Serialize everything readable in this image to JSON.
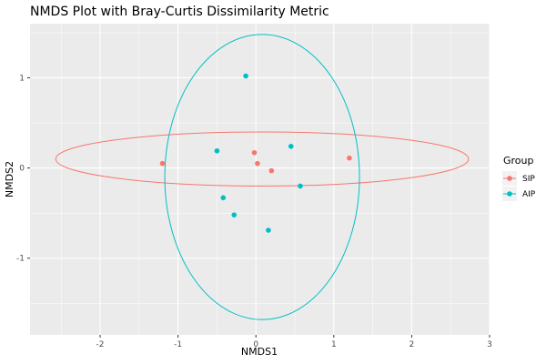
{
  "chart_data": {
    "type": "scatter",
    "title": "NMDS Plot with Bray-Curtis Dissimilarity Metric",
    "xlabel": "NMDS1",
    "ylabel": "NMDS2",
    "xlim": [
      -2.9,
      3.0
    ],
    "ylim": [
      -1.85,
      1.6
    ],
    "x_ticks": [
      -2,
      -1,
      0,
      1,
      2,
      3
    ],
    "y_ticks": [
      -1,
      0,
      1
    ],
    "grid": true,
    "legend": {
      "title": "Group",
      "position": "right"
    },
    "series": [
      {
        "name": "SIP",
        "color": "#F8766D",
        "points": [
          {
            "x": -1.2,
            "y": 0.05
          },
          {
            "x": -0.02,
            "y": 0.17
          },
          {
            "x": 0.02,
            "y": 0.05
          },
          {
            "x": 0.2,
            "y": -0.03
          },
          {
            "x": 1.2,
            "y": 0.11
          }
        ],
        "ellipse": {
          "cx": 0.08,
          "cy": 0.1,
          "rx": 2.65,
          "ry": 0.3
        }
      },
      {
        "name": "AIP",
        "color": "#00BFC4",
        "points": [
          {
            "x": -0.13,
            "y": 1.02
          },
          {
            "x": -0.5,
            "y": 0.19
          },
          {
            "x": 0.45,
            "y": 0.24
          },
          {
            "x": 0.57,
            "y": -0.2
          },
          {
            "x": -0.42,
            "y": -0.33
          },
          {
            "x": -0.28,
            "y": -0.52
          },
          {
            "x": 0.16,
            "y": -0.69
          }
        ],
        "ellipse": {
          "cx": 0.08,
          "cy": -0.1,
          "rx": 1.25,
          "ry": 1.58
        }
      }
    ]
  }
}
